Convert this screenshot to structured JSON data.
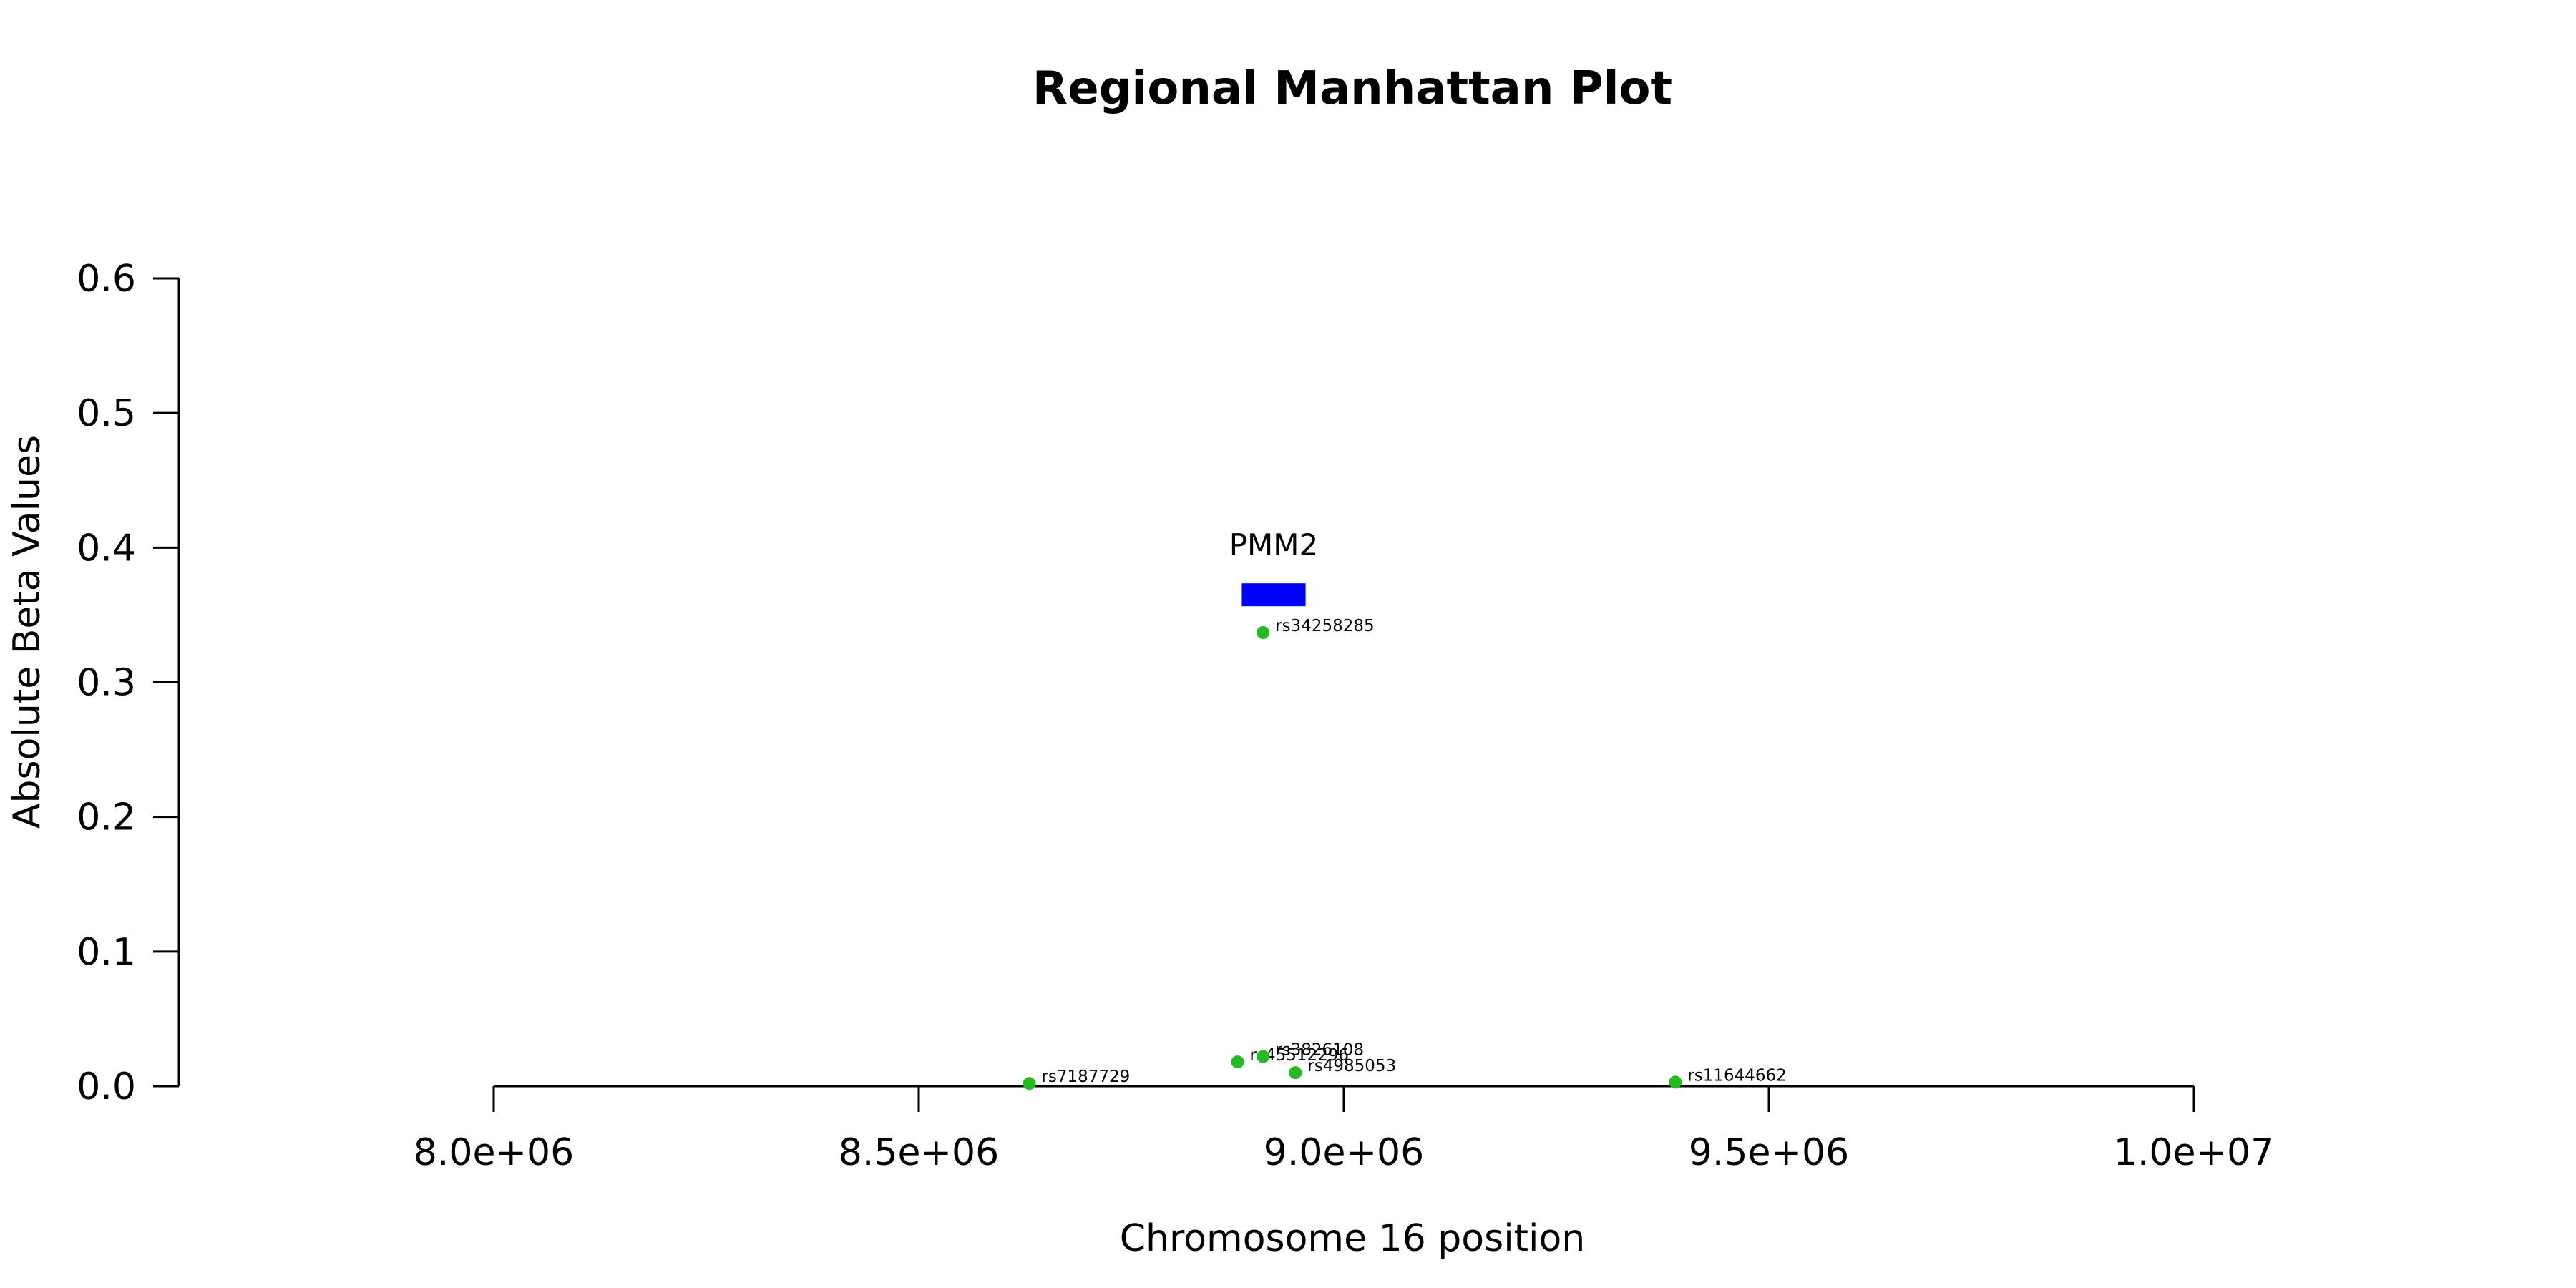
{
  "chart_data": {
    "type": "scatter",
    "title": "Regional Manhattan Plot",
    "xlabel": "Chromosome 16 position",
    "ylabel": "Absolute Beta Values",
    "xlim": [
      8000000,
      10000000
    ],
    "ylim": [
      0,
      0.6
    ],
    "x_ticks": [
      8000000,
      8500000,
      9000000,
      9500000,
      10000000
    ],
    "x_tick_labels": [
      "8.0e+06",
      "8.5e+06",
      "9.0e+06",
      "9.5e+06",
      "1.0e+07"
    ],
    "y_ticks": [
      0,
      0.1,
      0.2,
      0.3,
      0.4,
      0.5,
      0.6
    ],
    "y_tick_labels": [
      "0.0",
      "0.1",
      "0.2",
      "0.3",
      "0.4",
      "0.5",
      "0.6"
    ],
    "grid": false,
    "point_color": "#22bb22",
    "points": [
      {
        "label": "rs7187729",
        "x": 8630000,
        "y": 0.002
      },
      {
        "label": "rs45512296",
        "x": 8875000,
        "y": 0.018
      },
      {
        "label": "rs3826108",
        "x": 8905000,
        "y": 0.022
      },
      {
        "label": "rs4985053",
        "x": 8943000,
        "y": 0.01
      },
      {
        "label": "rs34258285",
        "x": 8905000,
        "y": 0.337
      },
      {
        "label": "rs11644662",
        "x": 9390000,
        "y": 0.003
      }
    ],
    "genes": [
      {
        "name": "PMM2",
        "start": 8880000,
        "end": 8955000,
        "y": 0.365,
        "color": "#0000ff"
      }
    ]
  }
}
